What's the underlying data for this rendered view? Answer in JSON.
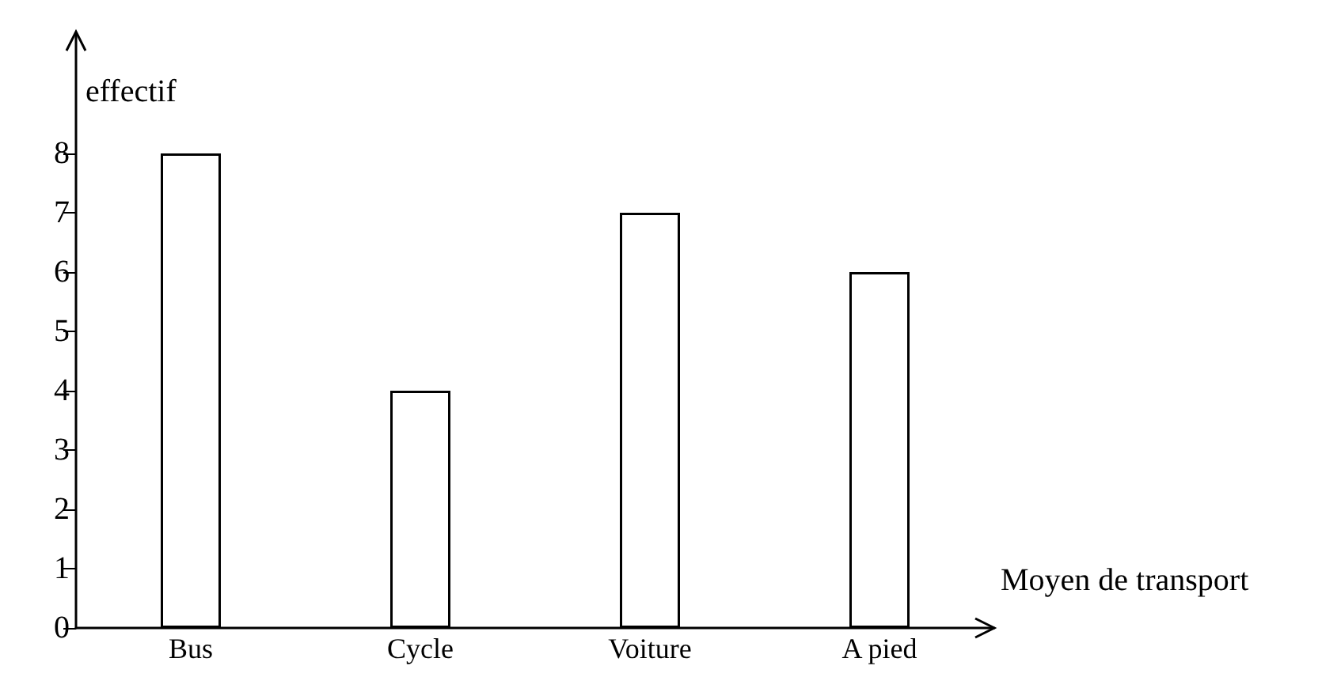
{
  "chart_data": {
    "type": "bar",
    "xlabel": "Moyen de transport",
    "ylabel": "effectif",
    "categories": [
      "Bus",
      "Cycle",
      "Voiture",
      "A pied"
    ],
    "values": [
      8,
      4,
      7,
      6
    ],
    "color": "#ffffff",
    "ylim": [
      0,
      10
    ],
    "yticks": [
      0,
      1,
      2,
      3,
      4,
      5,
      6,
      7,
      8
    ],
    "grid": false
  }
}
